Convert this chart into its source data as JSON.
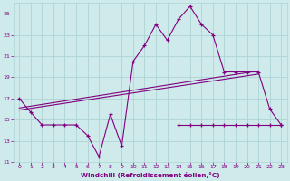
{
  "x_values": [
    0,
    1,
    2,
    3,
    4,
    5,
    6,
    7,
    8,
    9,
    10,
    11,
    12,
    13,
    14,
    15,
    16,
    17,
    18,
    19,
    20,
    21,
    22,
    23
  ],
  "main_line": [
    17,
    15.7,
    14.5,
    14.5,
    14.5,
    14.5,
    13.5,
    11.5,
    15.5,
    12.5,
    20.5,
    22.0,
    24.0,
    22.5,
    24.5,
    25.7,
    24.0,
    23.0,
    19.5,
    19.5,
    19.5,
    19.5,
    16.0,
    14.5
  ],
  "flat_line_x": [
    14,
    15,
    16,
    17,
    18,
    19,
    20,
    21,
    22,
    23
  ],
  "flat_line_y": [
    14.5,
    14.5,
    14.5,
    14.5,
    14.5,
    14.5,
    14.5,
    14.5,
    14.5,
    14.5
  ],
  "trend1_x0": 0,
  "trend1_x1": 21,
  "trend1_y0": 16.1,
  "trend1_y1": 19.6,
  "trend2_x0": 0,
  "trend2_x1": 21,
  "trend2_y0": 15.9,
  "trend2_y1": 19.3,
  "line_color": "#800080",
  "bg_color": "#ceeaea",
  "grid_color": "#aed4d4",
  "text_color": "#800080",
  "ylim": [
    11,
    26
  ],
  "xlim": [
    -0.5,
    23.5
  ],
  "yticks": [
    11,
    13,
    15,
    17,
    19,
    21,
    23,
    25
  ],
  "xticks": [
    0,
    1,
    2,
    3,
    4,
    5,
    6,
    7,
    8,
    9,
    10,
    11,
    12,
    13,
    14,
    15,
    16,
    17,
    18,
    19,
    20,
    21,
    22,
    23
  ],
  "xlabel": "Windchill (Refroidissement éolien,°C)"
}
